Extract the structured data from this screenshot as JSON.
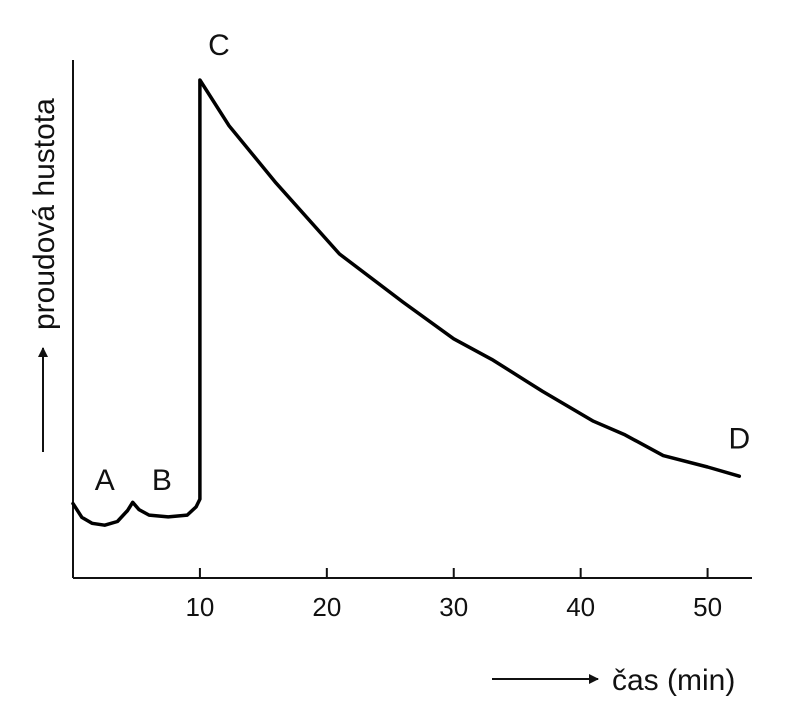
{
  "chart_data": {
    "type": "line",
    "title": "",
    "xlabel": "čas (min)",
    "ylabel": "proudová hustota",
    "xlim": [
      0,
      53.5
    ],
    "ylim": [
      0,
      100
    ],
    "x_ticks": [
      "10",
      "20",
      "30",
      "40",
      "50"
    ],
    "grid": false,
    "legend": "none",
    "line_color": "#000000",
    "series": [
      {
        "values": [
          {
            "x": 0.0,
            "y": 7.5
          },
          {
            "x": 0.7,
            "y": 4.5
          },
          {
            "x": 1.5,
            "y": 3.2
          },
          {
            "x": 2.5,
            "y": 2.8
          },
          {
            "x": 3.5,
            "y": 3.6
          },
          {
            "x": 4.3,
            "y": 6.0
          },
          {
            "x": 4.7,
            "y": 7.8
          },
          {
            "x": 5.2,
            "y": 6.2
          },
          {
            "x": 6.0,
            "y": 5.0
          },
          {
            "x": 7.5,
            "y": 4.6
          },
          {
            "x": 9.0,
            "y": 5.0
          },
          {
            "x": 9.7,
            "y": 6.8
          },
          {
            "x": 10.0,
            "y": 8.5
          },
          {
            "x": 10.0,
            "y": 100.0
          },
          {
            "x": 12.3,
            "y": 90.0
          },
          {
            "x": 16.0,
            "y": 77.5
          },
          {
            "x": 21.0,
            "y": 62.0
          },
          {
            "x": 26.0,
            "y": 51.5
          },
          {
            "x": 30.0,
            "y": 43.5
          },
          {
            "x": 33.0,
            "y": 39.0
          },
          {
            "x": 37.0,
            "y": 32.0
          },
          {
            "x": 41.0,
            "y": 25.5
          },
          {
            "x": 43.5,
            "y": 22.5
          },
          {
            "x": 46.5,
            "y": 18.0
          },
          {
            "x": 50.0,
            "y": 15.5
          },
          {
            "x": 52.5,
            "y": 13.5
          }
        ]
      }
    ],
    "annotations": [
      {
        "text": "A",
        "x": 2.5,
        "y": 10.5
      },
      {
        "text": "B",
        "x": 7.0,
        "y": 10.5
      },
      {
        "text": "C",
        "x": 11.5,
        "y": 105.5
      },
      {
        "text": "D",
        "x": 52.5,
        "y": 19.5
      }
    ]
  }
}
